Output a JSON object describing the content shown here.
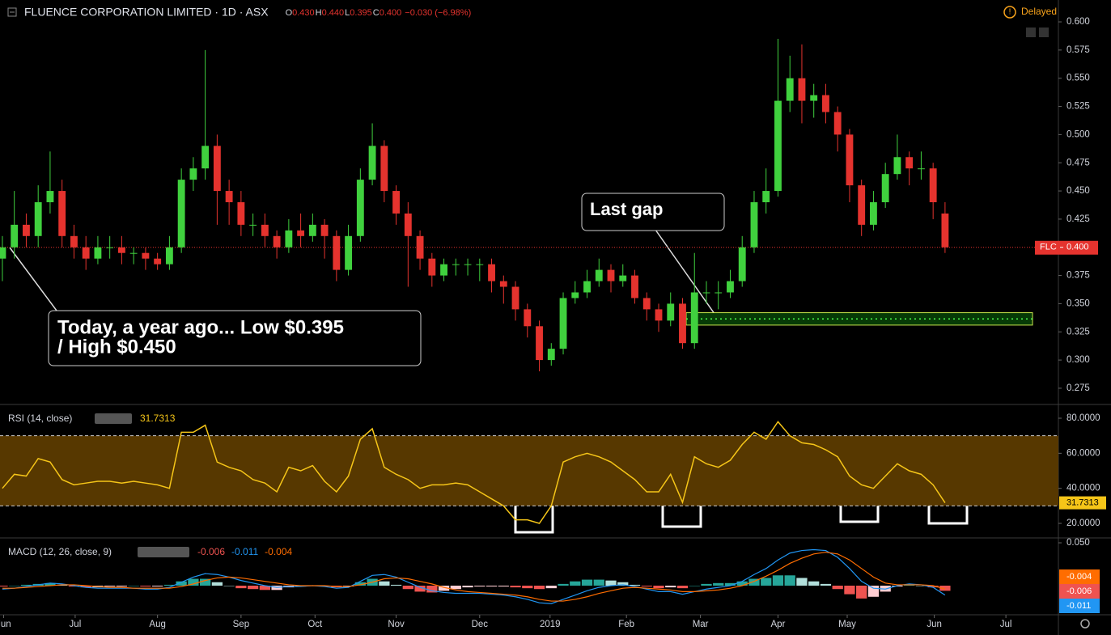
{
  "chart_data": [
    {
      "type": "candlestick",
      "title": "FLUENCE CORPORATION LIMITED · 1D · ASX",
      "ohlc_legend": [
        {
          "key": "O",
          "value": 0.43,
          "label": "0.430"
        },
        {
          "key": "H",
          "value": 0.44,
          "label": "0.440"
        },
        {
          "key": "L",
          "value": 0.395,
          "label": "0.395"
        },
        {
          "key": "C",
          "value": 0.4,
          "label": "0.400"
        }
      ],
      "change_label": "−0.030 (−6.98%)",
      "status": "Delayed",
      "x": [
        0,
        1,
        2,
        3,
        4,
        5,
        6,
        7,
        8,
        9,
        10,
        11,
        12,
        13,
        14,
        15,
        16,
        17,
        18,
        19,
        20,
        21,
        22,
        23,
        24,
        25,
        26,
        27,
        28,
        29,
        30,
        31,
        32,
        33,
        34,
        35,
        36,
        37,
        38,
        39,
        40,
        41,
        42,
        43,
        44,
        45,
        46,
        47,
        48,
        49,
        50,
        51,
        52,
        53,
        54,
        55,
        56,
        57,
        58,
        59,
        60,
        61,
        62,
        63,
        64,
        65,
        66,
        67,
        68,
        69,
        70,
        71,
        72,
        73,
        74,
        75,
        76,
        77,
        78,
        79
      ],
      "open": [
        0.39,
        0.4,
        0.42,
        0.41,
        0.44,
        0.45,
        0.41,
        0.4,
        0.39,
        0.4,
        0.4,
        0.395,
        0.395,
        0.39,
        0.385,
        0.4,
        0.46,
        0.47,
        0.49,
        0.45,
        0.44,
        0.42,
        0.42,
        0.41,
        0.4,
        0.415,
        0.41,
        0.42,
        0.41,
        0.38,
        0.41,
        0.46,
        0.49,
        0.45,
        0.43,
        0.41,
        0.39,
        0.375,
        0.385,
        0.385,
        0.385,
        0.385,
        0.37,
        0.365,
        0.345,
        0.33,
        0.3,
        0.31,
        0.355,
        0.36,
        0.37,
        0.38,
        0.37,
        0.375,
        0.355,
        0.345,
        0.335,
        0.35,
        0.315,
        0.36,
        0.36,
        0.36,
        0.37,
        0.4,
        0.44,
        0.45,
        0.53,
        0.55,
        0.53,
        0.535,
        0.52,
        0.5,
        0.455,
        0.42,
        0.44,
        0.465,
        0.48,
        0.47,
        0.47,
        0.43
      ],
      "high": [
        0.41,
        0.45,
        0.43,
        0.455,
        0.485,
        0.46,
        0.42,
        0.41,
        0.41,
        0.41,
        0.41,
        0.4,
        0.4,
        0.395,
        0.41,
        0.47,
        0.48,
        0.575,
        0.5,
        0.46,
        0.45,
        0.43,
        0.43,
        0.415,
        0.425,
        0.43,
        0.43,
        0.425,
        0.415,
        0.42,
        0.47,
        0.51,
        0.495,
        0.455,
        0.44,
        0.415,
        0.395,
        0.39,
        0.39,
        0.39,
        0.39,
        0.39,
        0.375,
        0.37,
        0.35,
        0.335,
        0.315,
        0.36,
        0.37,
        0.38,
        0.39,
        0.385,
        0.385,
        0.38,
        0.36,
        0.35,
        0.36,
        0.355,
        0.395,
        0.37,
        0.37,
        0.38,
        0.41,
        0.45,
        0.47,
        0.585,
        0.57,
        0.58,
        0.545,
        0.545,
        0.525,
        0.505,
        0.46,
        0.45,
        0.475,
        0.5,
        0.485,
        0.485,
        0.475,
        0.44
      ],
      "low": [
        0.37,
        0.39,
        0.4,
        0.4,
        0.43,
        0.4,
        0.39,
        0.38,
        0.385,
        0.39,
        0.385,
        0.385,
        0.38,
        0.38,
        0.38,
        0.395,
        0.45,
        0.46,
        0.42,
        0.42,
        0.41,
        0.41,
        0.4,
        0.39,
        0.395,
        0.4,
        0.405,
        0.39,
        0.37,
        0.375,
        0.405,
        0.455,
        0.44,
        0.42,
        0.365,
        0.38,
        0.365,
        0.37,
        0.375,
        0.375,
        0.37,
        0.36,
        0.35,
        0.335,
        0.32,
        0.29,
        0.295,
        0.305,
        0.35,
        0.355,
        0.365,
        0.36,
        0.365,
        0.35,
        0.335,
        0.325,
        0.33,
        0.31,
        0.31,
        0.35,
        0.345,
        0.355,
        0.365,
        0.395,
        0.43,
        0.445,
        0.52,
        0.51,
        0.515,
        0.51,
        0.485,
        0.44,
        0.41,
        0.415,
        0.435,
        0.46,
        0.455,
        0.46,
        0.425,
        0.395
      ],
      "close": [
        0.4,
        0.42,
        0.41,
        0.44,
        0.45,
        0.41,
        0.4,
        0.39,
        0.4,
        0.4,
        0.395,
        0.395,
        0.39,
        0.385,
        0.4,
        0.46,
        0.47,
        0.49,
        0.45,
        0.44,
        0.42,
        0.42,
        0.41,
        0.4,
        0.415,
        0.41,
        0.42,
        0.41,
        0.38,
        0.41,
        0.46,
        0.49,
        0.45,
        0.43,
        0.41,
        0.39,
        0.375,
        0.385,
        0.385,
        0.385,
        0.385,
        0.37,
        0.365,
        0.345,
        0.33,
        0.3,
        0.31,
        0.355,
        0.36,
        0.37,
        0.38,
        0.37,
        0.375,
        0.355,
        0.345,
        0.335,
        0.35,
        0.315,
        0.36,
        0.36,
        0.36,
        0.37,
        0.4,
        0.44,
        0.45,
        0.53,
        0.55,
        0.53,
        0.535,
        0.52,
        0.5,
        0.455,
        0.42,
        0.44,
        0.465,
        0.48,
        0.47,
        0.47,
        0.44,
        0.4
      ],
      "up_color": "#40d13e",
      "down_color": "#e5332e",
      "xlim": [
        -0.2,
        88.5
      ],
      "xticks": [
        {
          "value": 0.1,
          "label": "Jun"
        },
        {
          "value": 6.1,
          "label": "Jul"
        },
        {
          "value": 13,
          "label": "Aug"
        },
        {
          "value": 20,
          "label": "Sep"
        },
        {
          "value": 26.2,
          "label": "Oct"
        },
        {
          "value": 33,
          "label": "Nov"
        },
        {
          "value": 40,
          "label": "Dec"
        },
        {
          "value": 45.9,
          "label": "2019"
        },
        {
          "value": 52.3,
          "label": "Feb"
        },
        {
          "value": 58.5,
          "label": "Mar"
        },
        {
          "value": 65,
          "label": "Apr"
        },
        {
          "value": 70.8,
          "label": "May"
        },
        {
          "value": 78.1,
          "label": "Jun"
        },
        {
          "value": 84.1,
          "label": "Jul"
        }
      ],
      "ylim": [
        0.2606,
        0.6194
      ],
      "yticks": [
        {
          "value": 0.6,
          "label": "0.600"
        },
        0.575,
        {
          "value": 0.55,
          "label": "0.550"
        },
        0.525,
        {
          "value": 0.5,
          "label": "0.500"
        },
        0.475,
        {
          "value": 0.45,
          "label": "0.450"
        },
        0.425,
        0.375,
        {
          "value": 0.35,
          "label": "0.350"
        },
        0.325,
        {
          "value": 0.3,
          "label": "0.300"
        },
        0.275
      ],
      "last_price": {
        "symbol": "FLC",
        "value": 0.4,
        "label": "0.400"
      },
      "gap_zone": {
        "low": 0.331,
        "high": 0.342
      },
      "annotations": [
        {
          "text": "Last gap"
        },
        {
          "lines": [
            "Today, a year ago... Low $0.395",
            "/ High $0.450"
          ]
        }
      ]
    },
    {
      "type": "line",
      "title": "RSI (14, close)",
      "values": [
        40,
        48,
        47,
        57,
        55,
        45,
        42,
        43,
        44,
        44,
        43,
        44,
        43,
        42,
        40,
        72,
        72,
        76,
        55,
        52,
        50,
        45,
        43,
        38,
        52,
        50,
        53,
        44,
        38,
        47,
        68,
        74,
        52,
        48,
        45,
        40,
        42,
        42,
        43,
        42,
        38,
        34,
        30,
        22,
        22,
        20,
        30,
        55,
        58,
        60,
        58,
        55,
        50,
        45,
        38,
        38,
        48,
        32,
        58,
        54,
        52,
        56,
        65,
        72,
        68,
        78,
        70,
        66,
        65,
        62,
        58,
        47,
        42,
        40,
        47,
        54,
        50,
        48,
        42,
        31.7313
      ],
      "color": "#f5c518",
      "ylim": [
        11.7,
        87.85
      ],
      "yticks": [
        {
          "value": 80,
          "label": "80.0000"
        },
        {
          "value": 60,
          "label": "60.0000"
        },
        {
          "value": 40,
          "label": "40.0000"
        },
        {
          "value": 20,
          "label": "20.0000"
        }
      ],
      "bands": [
        30,
        70
      ],
      "band_color": "#573800"
    },
    {
      "type": "macd",
      "title": "MACD (12, 26, close, 9)",
      "histogram": {
        "values": [
          -0.001,
          0,
          0.001,
          0.002,
          0.003,
          0.001,
          -0.001,
          -0.002,
          -0.002,
          -0.001,
          -0.001,
          0,
          -0.001,
          -0.001,
          0.001,
          0.005,
          0.008,
          0.008,
          0.004,
          0,
          -0.003,
          -0.004,
          -0.005,
          -0.005,
          -0.002,
          -0.001,
          0,
          -0.001,
          -0.002,
          -0.001,
          0.004,
          0.008,
          0.005,
          0.001,
          -0.004,
          -0.007,
          -0.008,
          -0.006,
          -0.004,
          -0.002,
          -0.001,
          -0.001,
          -0.001,
          -0.002,
          -0.003,
          -0.004,
          -0.003,
          0.002,
          0.005,
          0.007,
          0.007,
          0.006,
          0.004,
          0.001,
          -0.001,
          -0.003,
          -0.002,
          -0.003,
          0,
          0.002,
          0.003,
          0.003,
          0.005,
          0.008,
          0.009,
          0.012,
          0.012,
          0.009,
          0.005,
          0.002,
          -0.004,
          -0.01,
          -0.015,
          -0.013,
          -0.007,
          -0.001,
          0.001,
          0,
          -0.002,
          -0.006
        ],
        "color": "#ef5350"
      },
      "series": [
        {
          "color": "#2196f3",
          "values": [
            -0.004,
            -0.003,
            -0.001,
            0.001,
            0.003,
            0.002,
            0,
            -0.002,
            -0.003,
            -0.003,
            -0.003,
            -0.003,
            -0.004,
            -0.004,
            -0.002,
            0.004,
            0.01,
            0.014,
            0.013,
            0.01,
            0.006,
            0.003,
            0,
            -0.002,
            -0.001,
            -0.001,
            0,
            -0.001,
            -0.003,
            -0.002,
            0.005,
            0.012,
            0.013,
            0.01,
            0.004,
            -0.002,
            -0.006,
            -0.008,
            -0.009,
            -0.009,
            -0.009,
            -0.01,
            -0.011,
            -0.013,
            -0.016,
            -0.02,
            -0.021,
            -0.016,
            -0.011,
            -0.006,
            -0.002,
            0,
            0.001,
            -0.001,
            -0.004,
            -0.007,
            -0.007,
            -0.01,
            -0.007,
            -0.004,
            -0.002,
            0,
            0.005,
            0.013,
            0.02,
            0.03,
            0.038,
            0.041,
            0.042,
            0.041,
            0.033,
            0.02,
            0.005,
            -0.003,
            -0.004,
            0,
            0.002,
            0.001,
            -0.002,
            -0.011
          ]
        },
        {
          "color": "#ff6d00",
          "values": [
            -0.003,
            -0.003,
            -0.002,
            -0.001,
            0,
            0.001,
            0.001,
            0,
            -0.001,
            -0.002,
            -0.002,
            -0.003,
            -0.003,
            -0.003,
            -0.003,
            -0.001,
            0.002,
            0.006,
            0.009,
            0.01,
            0.009,
            0.007,
            0.005,
            0.003,
            0.001,
            0,
            0,
            0,
            -0.001,
            -0.001,
            0.001,
            0.004,
            0.008,
            0.009,
            0.008,
            0.005,
            0.002,
            -0.002,
            -0.005,
            -0.007,
            -0.008,
            -0.009,
            -0.01,
            -0.011,
            -0.013,
            -0.016,
            -0.018,
            -0.018,
            -0.016,
            -0.013,
            -0.009,
            -0.006,
            -0.003,
            -0.002,
            -0.003,
            -0.004,
            -0.005,
            -0.007,
            -0.007,
            -0.006,
            -0.005,
            -0.003,
            0,
            0.005,
            0.011,
            0.018,
            0.026,
            0.032,
            0.037,
            0.039,
            0.037,
            0.03,
            0.02,
            0.01,
            0.003,
            0.001,
            0.001,
            0.001,
            0,
            -0.004
          ]
        }
      ],
      "ylim": [
        -0.034,
        0.0557
      ],
      "yticks": [
        {
          "value": 0.05,
          "label": "0.050"
        }
      ]
    }
  ]
}
